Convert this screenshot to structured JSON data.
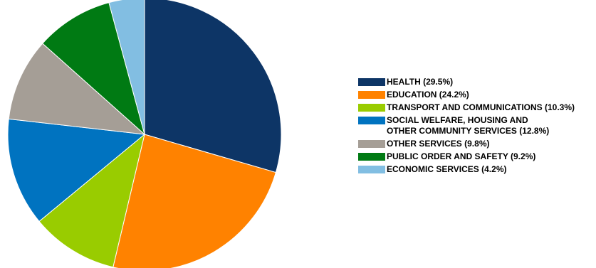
{
  "chart_data": {
    "type": "pie",
    "title": "",
    "unit": "%",
    "slices": [
      {
        "label": "HEALTH (29.5%)",
        "value": 29.5,
        "color": "#0d3566"
      },
      {
        "label": "EDUCATION (24.2%)",
        "value": 24.2,
        "color": "#ff8200"
      },
      {
        "label": "TRANSPORT AND COMMUNICATIONS (10.3%)",
        "value": 10.3,
        "color": "#99cc00"
      },
      {
        "label": "SOCIAL WELFARE, HOUSING AND\nOTHER COMMUNITY SERVICES (12.8%)",
        "value": 12.8,
        "color": "#0073c0"
      },
      {
        "label": "OTHER SERVICES (9.8%)",
        "value": 9.8,
        "color": "#a59e96"
      },
      {
        "label": "PUBLIC ORDER AND SAFETY (9.2%)",
        "value": 9.2,
        "color": "#007a13"
      },
      {
        "label": "ECONOMIC SERVICES (4.2%)",
        "value": 4.2,
        "color": "#82bee2"
      }
    ],
    "start_angle": "12 o'clock",
    "direction": "clockwise",
    "legend_position": "right"
  }
}
